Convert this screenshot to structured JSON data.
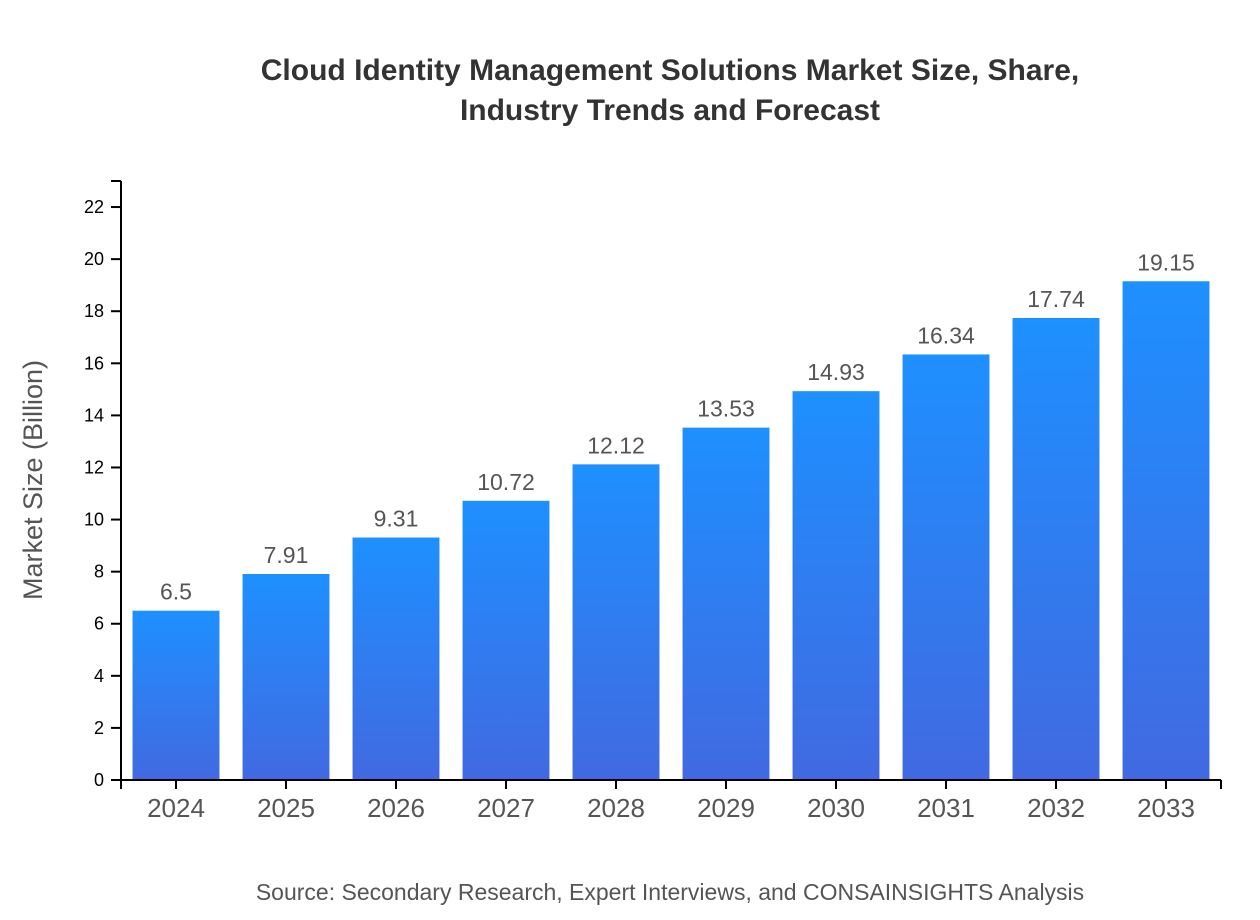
{
  "chart_data": {
    "type": "bar",
    "title_lines": [
      "Cloud Identity Management Solutions Market Size, Share,",
      "Industry Trends and Forecast"
    ],
    "categories": [
      "2024",
      "2025",
      "2026",
      "2027",
      "2028",
      "2029",
      "2030",
      "2031",
      "2032",
      "2033"
    ],
    "values": [
      6.5,
      7.91,
      9.31,
      10.72,
      12.12,
      13.53,
      14.93,
      16.34,
      17.74,
      19.15
    ],
    "data_labels": [
      "6.5",
      "7.91",
      "9.31",
      "10.72",
      "12.12",
      "13.53",
      "14.93",
      "16.34",
      "17.74",
      "19.15"
    ],
    "xlabel": "",
    "ylabel": "Market Size (Billion)",
    "ylim": [
      0,
      23
    ],
    "yticks": [
      0,
      2,
      4,
      6,
      8,
      10,
      12,
      14,
      16,
      18,
      20,
      22
    ],
    "grid": false,
    "legend": "none",
    "colors": {
      "gradient_top": "#1E90FF",
      "gradient_bottom": "#4169E1"
    },
    "source": "Source: Secondary Research, Expert Interviews, and CONSAINSIGHTS Analysis"
  }
}
